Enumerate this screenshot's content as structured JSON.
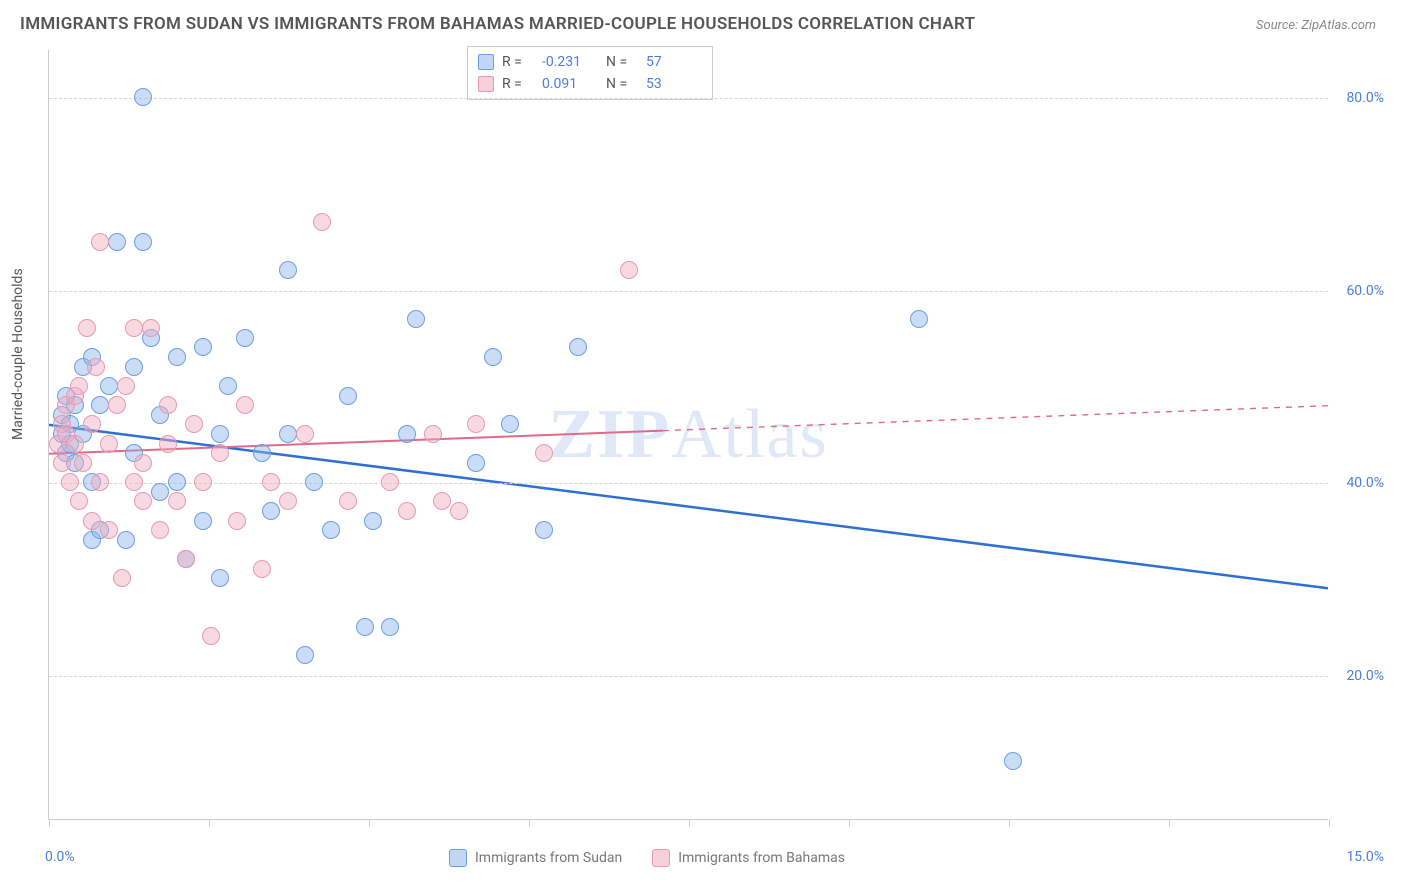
{
  "title": "IMMIGRANTS FROM SUDAN VS IMMIGRANTS FROM BAHAMAS MARRIED-COUPLE HOUSEHOLDS CORRELATION CHART",
  "source": "Source: ZipAtlas.com",
  "ylabel": "Married-couple Households",
  "watermark_prefix": "ZIP",
  "watermark_suffix": "Atlas",
  "chart": {
    "type": "scatter-with-regression",
    "xlim": [
      0,
      15
    ],
    "ylim": [
      5,
      85
    ],
    "xticks_minor": [
      0,
      1.875,
      3.75,
      5.625,
      7.5,
      9.375,
      11.25,
      13.125,
      15
    ],
    "xtick_labels": {
      "left": "0.0%",
      "right": "15.0%"
    },
    "ytick_values": [
      20,
      40,
      60,
      80
    ],
    "ytick_labels": [
      "20.0%",
      "40.0%",
      "60.0%",
      "80.0%"
    ],
    "grid_color": "#d5d5d5",
    "background_color": "#ffffff",
    "axis_color": "#cccccc",
    "tick_label_color": "#4a7fd8",
    "marker_radius": 9,
    "marker_border_width": 1.5,
    "series": [
      {
        "name": "Immigrants from Sudan",
        "fill": "rgba(140,180,235,0.45)",
        "stroke": "#6aa0e0",
        "reg_color": "#2f6fd0",
        "reg_width": 2.5,
        "reg_solid_to_x": 15,
        "reg_y_start": 46,
        "reg_y_end": 29,
        "R": "-0.231",
        "N": "57",
        "points": [
          [
            0.15,
            45
          ],
          [
            0.15,
            47
          ],
          [
            0.2,
            43
          ],
          [
            0.2,
            49
          ],
          [
            0.25,
            44
          ],
          [
            0.25,
            46
          ],
          [
            0.3,
            42
          ],
          [
            0.3,
            48
          ],
          [
            0.4,
            45
          ],
          [
            0.4,
            52
          ],
          [
            0.5,
            34
          ],
          [
            0.5,
            40
          ],
          [
            0.5,
            53
          ],
          [
            0.6,
            35
          ],
          [
            0.6,
            48
          ],
          [
            0.7,
            50
          ],
          [
            0.8,
            65
          ],
          [
            0.9,
            34
          ],
          [
            1.0,
            43
          ],
          [
            1.0,
            52
          ],
          [
            1.1,
            80
          ],
          [
            1.1,
            65
          ],
          [
            1.2,
            55
          ],
          [
            1.3,
            39
          ],
          [
            1.3,
            47
          ],
          [
            1.5,
            53
          ],
          [
            1.5,
            40
          ],
          [
            1.6,
            32
          ],
          [
            1.8,
            36
          ],
          [
            1.8,
            54
          ],
          [
            2.0,
            45
          ],
          [
            2.0,
            30
          ],
          [
            2.1,
            50
          ],
          [
            2.3,
            55
          ],
          [
            2.5,
            43
          ],
          [
            2.6,
            37
          ],
          [
            2.8,
            62
          ],
          [
            2.8,
            45
          ],
          [
            3.0,
            22
          ],
          [
            3.1,
            40
          ],
          [
            3.3,
            35
          ],
          [
            3.5,
            49
          ],
          [
            3.7,
            25
          ],
          [
            3.8,
            36
          ],
          [
            4.0,
            25
          ],
          [
            4.2,
            45
          ],
          [
            4.3,
            57
          ],
          [
            5.0,
            42
          ],
          [
            5.2,
            53
          ],
          [
            5.4,
            46
          ],
          [
            5.8,
            35
          ],
          [
            6.2,
            54
          ],
          [
            10.2,
            57
          ],
          [
            11.3,
            11
          ]
        ]
      },
      {
        "name": "Immigrants from Bahamas",
        "fill": "rgba(240,170,190,0.45)",
        "stroke": "#e59ab0",
        "reg_color": "#e06a8a",
        "reg_width": 2,
        "reg_solid_to_x": 7.2,
        "reg_y_start": 43,
        "reg_y_end": 48,
        "R": "0.091",
        "N": "53",
        "points": [
          [
            0.1,
            44
          ],
          [
            0.15,
            42
          ],
          [
            0.15,
            46
          ],
          [
            0.2,
            45
          ],
          [
            0.2,
            48
          ],
          [
            0.25,
            40
          ],
          [
            0.3,
            44
          ],
          [
            0.3,
            49
          ],
          [
            0.35,
            38
          ],
          [
            0.35,
            50
          ],
          [
            0.4,
            42
          ],
          [
            0.45,
            56
          ],
          [
            0.5,
            36
          ],
          [
            0.5,
            46
          ],
          [
            0.55,
            52
          ],
          [
            0.6,
            40
          ],
          [
            0.6,
            65
          ],
          [
            0.7,
            44
          ],
          [
            0.7,
            35
          ],
          [
            0.8,
            48
          ],
          [
            0.85,
            30
          ],
          [
            0.9,
            50
          ],
          [
            1.0,
            40
          ],
          [
            1.0,
            56
          ],
          [
            1.1,
            42
          ],
          [
            1.1,
            38
          ],
          [
            1.2,
            56
          ],
          [
            1.3,
            35
          ],
          [
            1.4,
            44
          ],
          [
            1.4,
            48
          ],
          [
            1.5,
            38
          ],
          [
            1.6,
            32
          ],
          [
            1.7,
            46
          ],
          [
            1.8,
            40
          ],
          [
            1.9,
            24
          ],
          [
            2.0,
            43
          ],
          [
            2.2,
            36
          ],
          [
            2.3,
            48
          ],
          [
            2.5,
            31
          ],
          [
            2.6,
            40
          ],
          [
            2.8,
            38
          ],
          [
            3.0,
            45
          ],
          [
            3.2,
            67
          ],
          [
            3.5,
            38
          ],
          [
            4.0,
            40
          ],
          [
            4.2,
            37
          ],
          [
            4.5,
            45
          ],
          [
            4.6,
            38
          ],
          [
            4.8,
            37
          ],
          [
            5.0,
            46
          ],
          [
            5.8,
            43
          ],
          [
            6.8,
            62
          ]
        ]
      }
    ],
    "legend_top": {
      "swatch_border_radius": 2,
      "rows": [
        {
          "swatch_fill": "rgba(140,180,235,0.55)",
          "swatch_stroke": "#6aa0e0",
          "R_label": "R =",
          "R_val": "-0.231",
          "N_label": "N =",
          "N_val": "57"
        },
        {
          "swatch_fill": "rgba(240,170,190,0.55)",
          "swatch_stroke": "#e59ab0",
          "R_label": "R =",
          "R_val": "0.091",
          "N_label": "N =",
          "N_val": "53"
        }
      ]
    },
    "legend_bottom": {
      "items": [
        {
          "swatch_fill": "rgba(140,180,235,0.55)",
          "swatch_stroke": "#6aa0e0",
          "label": "Immigrants from Sudan"
        },
        {
          "swatch_fill": "rgba(240,170,190,0.55)",
          "swatch_stroke": "#e59ab0",
          "label": "Immigrants from Bahamas"
        }
      ]
    }
  }
}
